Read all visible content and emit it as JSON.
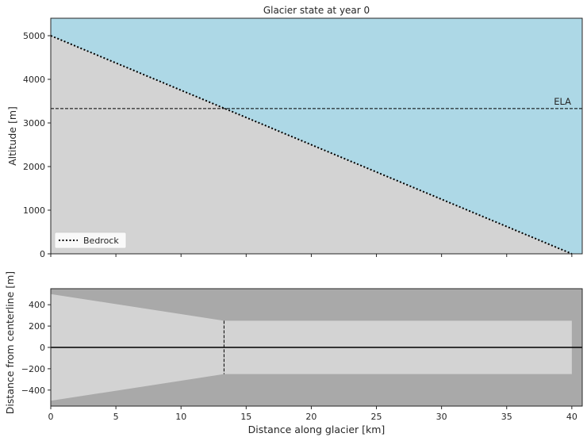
{
  "chart_data": [
    {
      "type": "area",
      "title": "Glacier state at year 0",
      "xlabel": "",
      "ylabel": "Altitude [m]",
      "xlim": [
        0,
        40.8
      ],
      "ylim": [
        0,
        5400
      ],
      "xticks": [
        0,
        5,
        10,
        15,
        20,
        25,
        30,
        35,
        40
      ],
      "yticks": [
        0,
        1000,
        2000,
        3000,
        4000,
        5000
      ],
      "ytick_labels": [
        "0",
        "1000",
        "2000",
        "3000",
        "4000",
        "5000"
      ],
      "series": [
        {
          "name": "Bedrock",
          "style": "dotted",
          "x": [
            0,
            40
          ],
          "y": [
            5000,
            0
          ]
        }
      ],
      "ela": {
        "label": "ELA",
        "value": 3330
      },
      "colors": {
        "sky": "#add8e6",
        "ground": "#d3d3d3",
        "line": "#000000"
      },
      "legend": "lower-left",
      "grid": false
    },
    {
      "type": "area",
      "title": "",
      "xlabel": "Distance along glacier [km]",
      "ylabel": "Distance from centerline [m]",
      "xlim": [
        0,
        40.8
      ],
      "ylim": [
        -550,
        550
      ],
      "xticks": [
        0,
        5,
        10,
        15,
        20,
        25,
        30,
        35,
        40
      ],
      "xtick_labels": [
        "0",
        "5",
        "10",
        "15",
        "20",
        "25",
        "30",
        "35",
        "40"
      ],
      "yticks": [
        400,
        200,
        0,
        -200,
        -400
      ],
      "ytick_labels": [
        "400",
        "200",
        "0",
        "−200",
        "−400"
      ],
      "valley_outline": {
        "x": [
          0,
          13.3,
          40
        ],
        "upper": [
          500,
          250,
          250
        ],
        "lower": [
          -500,
          -250,
          -250
        ]
      },
      "ela_x": 13.3,
      "colors": {
        "background": "#a9a9a9",
        "valley": "#d3d3d3",
        "centerline": "#000000"
      },
      "grid": false
    }
  ]
}
